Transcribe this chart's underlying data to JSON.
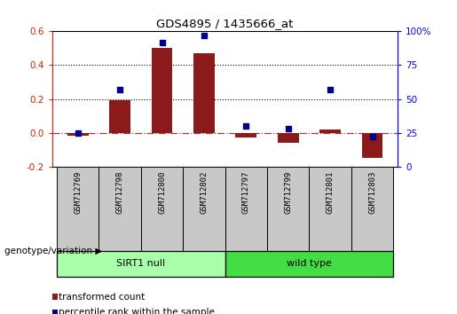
{
  "title": "GDS4895 / 1435666_at",
  "samples": [
    "GSM712769",
    "GSM712798",
    "GSM712800",
    "GSM712802",
    "GSM712797",
    "GSM712799",
    "GSM712801",
    "GSM712803"
  ],
  "transformed_count": [
    -0.02,
    0.19,
    0.5,
    0.47,
    -0.03,
    -0.06,
    0.02,
    -0.15
  ],
  "percentile_rank": [
    25,
    57,
    92,
    97,
    30,
    28,
    57,
    22
  ],
  "left_ylim": [
    -0.2,
    0.6
  ],
  "right_ylim": [
    0,
    100
  ],
  "left_yticks": [
    -0.2,
    0.0,
    0.2,
    0.4,
    0.6
  ],
  "right_yticks": [
    0,
    25,
    50,
    75,
    100
  ],
  "right_yticklabels": [
    "0",
    "25",
    "50",
    "75",
    "100%"
  ],
  "bar_color": "#8B1A1A",
  "dot_color": "#00008B",
  "zero_line_color": "#8B1A1A",
  "groups": [
    {
      "label": "SIRT1 null",
      "color": "#AAFFAA"
    },
    {
      "label": "wild type",
      "color": "#44DD44"
    }
  ],
  "group_label": "genotype/variation",
  "legend_bar_label": "transformed count",
  "legend_dot_label": "percentile rank within the sample",
  "background_color": "#ffffff"
}
